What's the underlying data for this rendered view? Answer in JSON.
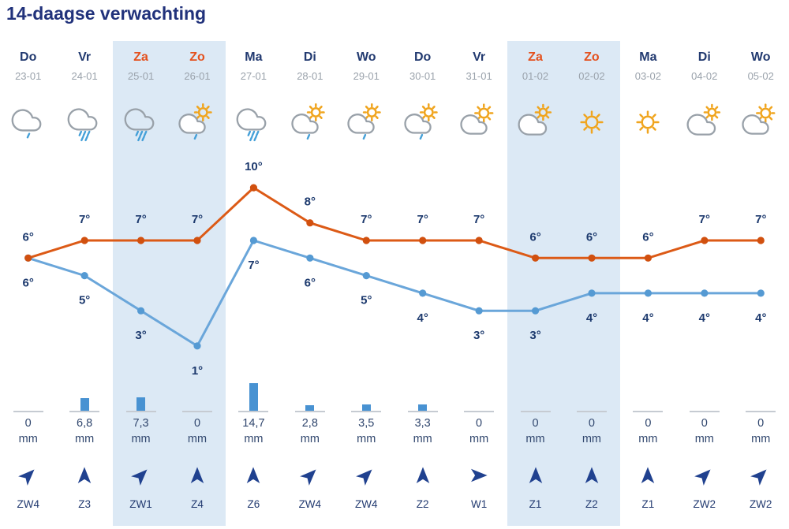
{
  "title": "14-daagse verwachting",
  "colors": {
    "title_navy": "#21327b",
    "day_navy": "#223a70",
    "weekend_orange": "#e4511e",
    "date_gray": "#9aa2ab",
    "max_line_orange": "#dc5a16",
    "min_line_blue": "#6aa6da",
    "bar_blue": "#4892d2",
    "baseline_gray": "#c6cbd2",
    "weekend_band": "#dce9f5",
    "cloud_gray": "#99a1a9",
    "sun_yellow": "#f0a51f",
    "drop_blue": "#45a0d8",
    "arrow_navy": "#20418f"
  },
  "days": [
    {
      "day": "Do",
      "date": "23-01",
      "weekend": false,
      "icon": "cloud-light-rain",
      "temp_max": 6,
      "temp_min": 6,
      "temp_max_label": "6°",
      "temp_min_label": "6°",
      "precip_label": "0",
      "precip_unit": "mm",
      "precip_mm": 0,
      "wind_label": "ZW4",
      "wind_dir_deg": 45
    },
    {
      "day": "Vr",
      "date": "24-01",
      "weekend": false,
      "icon": "cloud-rain",
      "temp_max": 7,
      "temp_min": 5,
      "temp_max_label": "7°",
      "temp_min_label": "5°",
      "precip_label": "6,8",
      "precip_unit": "mm",
      "precip_mm": 6.8,
      "wind_label": "Z3",
      "wind_dir_deg": 0
    },
    {
      "day": "Za",
      "date": "25-01",
      "weekend": true,
      "icon": "cloud-rain",
      "temp_max": 7,
      "temp_min": 3,
      "temp_max_label": "7°",
      "temp_min_label": "3°",
      "precip_label": "7,3",
      "precip_unit": "mm",
      "precip_mm": 7.3,
      "wind_label": "ZW1",
      "wind_dir_deg": 45
    },
    {
      "day": "Zo",
      "date": "26-01",
      "weekend": true,
      "icon": "sun-cloud-rain",
      "temp_max": 7,
      "temp_min": 1,
      "temp_max_label": "7°",
      "temp_min_label": "1°",
      "precip_label": "0",
      "precip_unit": "mm",
      "precip_mm": 0,
      "wind_label": "Z4",
      "wind_dir_deg": 0
    },
    {
      "day": "Ma",
      "date": "27-01",
      "weekend": false,
      "icon": "cloud-rain",
      "temp_max": 10,
      "temp_min": 7,
      "temp_max_label": "10°",
      "temp_min_label": "7°",
      "precip_label": "14,7",
      "precip_unit": "mm",
      "precip_mm": 14.7,
      "wind_label": "Z6",
      "wind_dir_deg": 0
    },
    {
      "day": "Di",
      "date": "28-01",
      "weekend": false,
      "icon": "sun-cloud-rain",
      "temp_max": 8,
      "temp_min": 6,
      "temp_max_label": "8°",
      "temp_min_label": "6°",
      "precip_label": "2,8",
      "precip_unit": "mm",
      "precip_mm": 2.8,
      "wind_label": "ZW4",
      "wind_dir_deg": 45
    },
    {
      "day": "Wo",
      "date": "29-01",
      "weekend": false,
      "icon": "sun-cloud-rain",
      "temp_max": 7,
      "temp_min": 5,
      "temp_max_label": "7°",
      "temp_min_label": "5°",
      "precip_label": "3,5",
      "precip_unit": "mm",
      "precip_mm": 3.5,
      "wind_label": "ZW4",
      "wind_dir_deg": 45
    },
    {
      "day": "Do",
      "date": "30-01",
      "weekend": false,
      "icon": "sun-cloud-rain",
      "temp_max": 7,
      "temp_min": 4,
      "temp_max_label": "7°",
      "temp_min_label": "4°",
      "precip_label": "3,3",
      "precip_unit": "mm",
      "precip_mm": 3.3,
      "wind_label": "Z2",
      "wind_dir_deg": 0
    },
    {
      "day": "Vr",
      "date": "31-01",
      "weekend": false,
      "icon": "sun-cloud",
      "temp_max": 7,
      "temp_min": 3,
      "temp_max_label": "7°",
      "temp_min_label": "3°",
      "precip_label": "0",
      "precip_unit": "mm",
      "precip_mm": 0,
      "wind_label": "W1",
      "wind_dir_deg": 90
    },
    {
      "day": "Za",
      "date": "01-02",
      "weekend": true,
      "icon": "cloud-sun",
      "temp_max": 6,
      "temp_min": 3,
      "temp_max_label": "6°",
      "temp_min_label": "3°",
      "precip_label": "0",
      "precip_unit": "mm",
      "precip_mm": 0,
      "wind_label": "Z1",
      "wind_dir_deg": 0
    },
    {
      "day": "Zo",
      "date": "02-02",
      "weekend": true,
      "icon": "sun",
      "temp_max": 6,
      "temp_min": 4,
      "temp_max_label": "6°",
      "temp_min_label": "4°",
      "precip_label": "0",
      "precip_unit": "mm",
      "precip_mm": 0,
      "wind_label": "Z2",
      "wind_dir_deg": 0
    },
    {
      "day": "Ma",
      "date": "03-02",
      "weekend": false,
      "icon": "sun",
      "temp_max": 6,
      "temp_min": 4,
      "temp_max_label": "6°",
      "temp_min_label": "4°",
      "precip_label": "0",
      "precip_unit": "mm",
      "precip_mm": 0,
      "wind_label": "Z1",
      "wind_dir_deg": 0
    },
    {
      "day": "Di",
      "date": "04-02",
      "weekend": false,
      "icon": "cloud-sun",
      "temp_max": 7,
      "temp_min": 4,
      "temp_max_label": "7°",
      "temp_min_label": "4°",
      "precip_label": "0",
      "precip_unit": "mm",
      "precip_mm": 0,
      "wind_label": "ZW2",
      "wind_dir_deg": 45
    },
    {
      "day": "Wo",
      "date": "05-02",
      "weekend": false,
      "icon": "sun-cloud",
      "temp_max": 7,
      "temp_min": 4,
      "temp_max_label": "7°",
      "temp_min_label": "4°",
      "precip_label": "0",
      "precip_unit": "mm",
      "precip_mm": 0,
      "wind_label": "ZW2",
      "wind_dir_deg": 45
    }
  ],
  "chart_data": {
    "type": "line",
    "title": "14-daagse verwachting",
    "categories": [
      "23-01",
      "24-01",
      "25-01",
      "26-01",
      "27-01",
      "28-01",
      "29-01",
      "30-01",
      "31-01",
      "01-02",
      "02-02",
      "03-02",
      "04-02",
      "05-02"
    ],
    "category_days": [
      "Do",
      "Vr",
      "Za",
      "Zo",
      "Ma",
      "Di",
      "Wo",
      "Do",
      "Vr",
      "Za",
      "Zo",
      "Ma",
      "Di",
      "Wo"
    ],
    "series": [
      {
        "name": "max_temp_c",
        "type": "line",
        "color": "#dc5a16",
        "values": [
          6,
          7,
          7,
          7,
          10,
          8,
          7,
          7,
          7,
          6,
          6,
          6,
          7,
          7
        ]
      },
      {
        "name": "min_temp_c",
        "type": "line",
        "color": "#6aa6da",
        "values": [
          6,
          5,
          3,
          1,
          7,
          6,
          5,
          4,
          3,
          3,
          4,
          4,
          4,
          4
        ]
      },
      {
        "name": "precipitation_mm",
        "type": "bar",
        "color": "#4892d2",
        "values": [
          0,
          6.8,
          7.3,
          0,
          14.7,
          2.8,
          3.5,
          3.3,
          0,
          0,
          0,
          0,
          0,
          0
        ]
      },
      {
        "name": "wind",
        "type": "labels",
        "values": [
          "ZW4",
          "Z3",
          "ZW1",
          "Z4",
          "Z6",
          "ZW4",
          "ZW4",
          "Z2",
          "W1",
          "Z1",
          "Z2",
          "Z1",
          "ZW2",
          "ZW2"
        ]
      }
    ],
    "ylim": [
      0,
      11
    ],
    "grid": false,
    "legend": false,
    "point_labels": true,
    "weekend_highlight_indexes": [
      2,
      3,
      9,
      10
    ]
  }
}
